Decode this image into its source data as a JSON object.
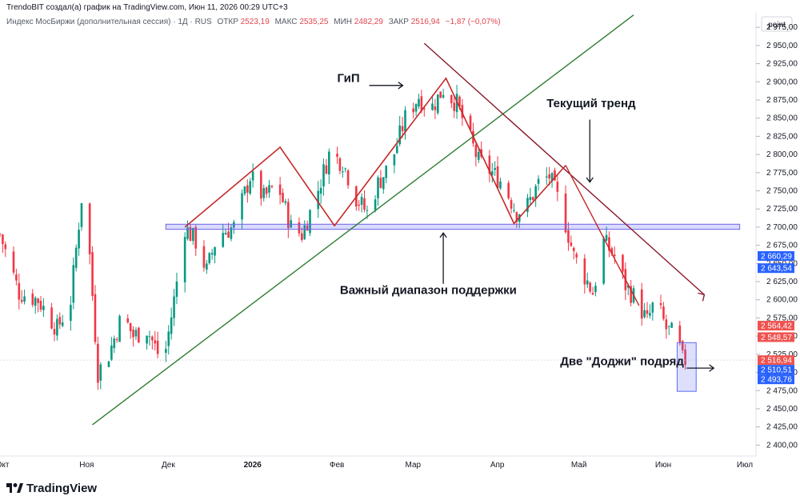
{
  "header": {
    "credit": "TrendoBIT создал(а) график на TradingView.com, Июн 11, 2026 00:29 UTC+3",
    "symbol_line": "Индекс МосБиржи (дополнительная сессия) · 1Д · RUS",
    "ohlc": [
      {
        "label": "ОТКР",
        "value": "2523,19"
      },
      {
        "label": "МАКС",
        "value": "2535,25"
      },
      {
        "label": "МИН",
        "value": "2482,29"
      },
      {
        "label": "ЗАКР",
        "value": "2516,94"
      }
    ],
    "change": "−1,87 (−0,07%)"
  },
  "toolbar": {
    "unit_button": "point"
  },
  "footer": {
    "logo_text": "TradingView"
  },
  "chart_data": {
    "type": "candlestick",
    "y_axis": {
      "range": [
        2385,
        2995
      ],
      "ticks": [
        "2 975,00",
        "2 950,00",
        "2 925,00",
        "2 900,00",
        "2 875,00",
        "2 850,00",
        "2 825,00",
        "2 800,00",
        "2 775,00",
        "2 750,00",
        "2 725,00",
        "2 700,00",
        "2 675,00",
        "2 650,00",
        "2 625,00",
        "2 600,00",
        "2 575,00",
        "2 550,00",
        "2 525,00",
        "2 500,00",
        "2 475,00",
        "2 450,00",
        "2 425,00",
        "2 400,00"
      ],
      "tick_values": [
        2975,
        2950,
        2925,
        2900,
        2875,
        2850,
        2825,
        2800,
        2775,
        2750,
        2725,
        2700,
        2675,
        2650,
        2625,
        2600,
        2575,
        2550,
        2525,
        2500,
        2475,
        2450,
        2425,
        2400
      ]
    },
    "x_axis": {
      "range": [
        "2025-10-01",
        "2026-07-06"
      ],
      "labels": [
        {
          "text": "Окт",
          "date": "2025-10-01"
        },
        {
          "text": "Ноя",
          "date": "2025-11-01"
        },
        {
          "text": "Дек",
          "date": "2025-12-01"
        },
        {
          "text": "2026",
          "date": "2026-01-01"
        },
        {
          "text": "Фев",
          "date": "2026-02-01"
        },
        {
          "text": "Мар",
          "date": "2026-03-01"
        },
        {
          "text": "Апр",
          "date": "2026-04-01"
        },
        {
          "text": "Май",
          "date": "2026-05-01"
        },
        {
          "text": "Июн",
          "date": "2026-06-01"
        },
        {
          "text": "Июл",
          "date": "2026-07-01"
        }
      ]
    },
    "price_path": [
      {
        "date": "2025-10-01",
        "close": 2690
      },
      {
        "date": "2025-10-08",
        "close": 2610
      },
      {
        "date": "2025-10-15",
        "close": 2600
      },
      {
        "date": "2025-10-22",
        "close": 2560
      },
      {
        "date": "2025-10-27",
        "close": 2600
      },
      {
        "date": "2025-10-31",
        "close": 2740
      },
      {
        "date": "2025-11-03",
        "close": 2660
      },
      {
        "date": "2025-11-06",
        "close": 2500
      },
      {
        "date": "2025-11-10",
        "close": 2525
      },
      {
        "date": "2025-11-15",
        "close": 2580
      },
      {
        "date": "2025-11-19",
        "close": 2550
      },
      {
        "date": "2025-11-24",
        "close": 2560
      },
      {
        "date": "2025-11-30",
        "close": 2510
      },
      {
        "date": "2025-12-04",
        "close": 2600
      },
      {
        "date": "2025-12-08",
        "close": 2700
      },
      {
        "date": "2025-12-12",
        "close": 2680
      },
      {
        "date": "2025-12-16",
        "close": 2640
      },
      {
        "date": "2025-12-20",
        "close": 2690
      },
      {
        "date": "2025-12-26",
        "close": 2700
      },
      {
        "date": "2026-01-01",
        "close": 2770
      },
      {
        "date": "2026-01-06",
        "close": 2740
      },
      {
        "date": "2026-01-11",
        "close": 2760
      },
      {
        "date": "2026-01-16",
        "close": 2700
      },
      {
        "date": "2026-01-20",
        "close": 2690
      },
      {
        "date": "2026-01-25",
        "close": 2740
      },
      {
        "date": "2026-01-30",
        "close": 2800
      },
      {
        "date": "2026-02-04",
        "close": 2790
      },
      {
        "date": "2026-02-09",
        "close": 2740
      },
      {
        "date": "2026-02-13",
        "close": 2720
      },
      {
        "date": "2026-02-17",
        "close": 2760
      },
      {
        "date": "2026-02-22",
        "close": 2790
      },
      {
        "date": "2026-02-27",
        "close": 2850
      },
      {
        "date": "2026-03-04",
        "close": 2880
      },
      {
        "date": "2026-03-08",
        "close": 2860
      },
      {
        "date": "2026-03-13",
        "close": 2890
      },
      {
        "date": "2026-03-18",
        "close": 2870
      },
      {
        "date": "2026-03-22",
        "close": 2830
      },
      {
        "date": "2026-03-26",
        "close": 2790
      },
      {
        "date": "2026-03-31",
        "close": 2775
      },
      {
        "date": "2026-04-04",
        "close": 2760
      },
      {
        "date": "2026-04-09",
        "close": 2720
      },
      {
        "date": "2026-04-13",
        "close": 2730
      },
      {
        "date": "2026-04-17",
        "close": 2760
      },
      {
        "date": "2026-04-21",
        "close": 2770
      },
      {
        "date": "2026-04-26",
        "close": 2720
      },
      {
        "date": "2026-04-30",
        "close": 2660
      },
      {
        "date": "2026-05-03",
        "close": 2640
      },
      {
        "date": "2026-05-07",
        "close": 2610
      },
      {
        "date": "2026-05-11",
        "close": 2680
      },
      {
        "date": "2026-05-15",
        "close": 2660
      },
      {
        "date": "2026-05-19",
        "close": 2620
      },
      {
        "date": "2026-05-23",
        "close": 2600
      },
      {
        "date": "2026-05-27",
        "close": 2570
      },
      {
        "date": "2026-05-30",
        "close": 2600
      },
      {
        "date": "2026-06-03",
        "close": 2560
      },
      {
        "date": "2026-06-07",
        "close": 2548
      },
      {
        "date": "2026-06-09",
        "close": 2517
      },
      {
        "date": "2026-06-10",
        "close": 2517
      }
    ],
    "price_tags": [
      {
        "value": 2660.29,
        "text": "2 660,29",
        "color": "#2962ff"
      },
      {
        "value": 2643.54,
        "text": "2 643,54",
        "color": "#2962ff"
      },
      {
        "value": 2564.42,
        "text": "2 564,42",
        "color": "#ef5350"
      },
      {
        "value": 2548.57,
        "text": "2 548,57",
        "color": "#ef5350"
      },
      {
        "value": 2516.94,
        "text": "2 516,94",
        "color": "#ef5350"
      },
      {
        "value": 2510.51,
        "text": "2 510,51",
        "color": "#2962ff"
      },
      {
        "value": 2493.76,
        "text": "2 493,76",
        "color": "#2962ff"
      }
    ],
    "support_zone": {
      "from": "2025-12-01",
      "to": "2026-06-30",
      "low": 2697,
      "high": 2704
    },
    "trendlines": [
      {
        "name": "uptrend",
        "color": "#2e7d32",
        "points": [
          {
            "date": "2025-11-04",
            "value": 2428
          },
          {
            "date": "2026-05-22",
            "value": 2992
          }
        ]
      },
      {
        "name": "current-trend",
        "color": "#8b1a2b",
        "points": [
          {
            "date": "2026-03-06",
            "value": 2953
          },
          {
            "date": "2026-06-17",
            "value": 2607
          }
        ]
      },
      {
        "name": "channel-lower",
        "color": "#c62828",
        "points": [
          {
            "date": "2026-04-27",
            "value": 2785
          },
          {
            "date": "2026-05-24",
            "value": 2592
          }
        ]
      }
    ],
    "patterns": [
      {
        "name": "zigzag-left",
        "color": "#c62828",
        "points": [
          {
            "date": "2025-12-08",
            "value": 2700
          },
          {
            "date": "2026-01-12",
            "value": 2810
          },
          {
            "date": "2026-02-01",
            "value": 2702
          },
          {
            "date": "2026-03-14",
            "value": 2905
          },
          {
            "date": "2026-04-08",
            "value": 2705
          },
          {
            "date": "2026-04-27",
            "value": 2785
          }
        ]
      }
    ],
    "highlight_box": {
      "from": "2026-06-07",
      "to": "2026-06-14",
      "low": 2474,
      "high": 2541
    },
    "annotations": [
      {
        "text": "ГиП",
        "date": "2026-02-02",
        "value": 2900
      },
      {
        "text": "Текущий тренд",
        "date": "2026-04-20",
        "value": 2865
      },
      {
        "text": "Важный диапазон поддержки",
        "date": "2026-02-03",
        "value": 2608
      },
      {
        "text": "Две \"Доджи\" подряд",
        "date": "2026-04-25",
        "value": 2510
      }
    ]
  }
}
